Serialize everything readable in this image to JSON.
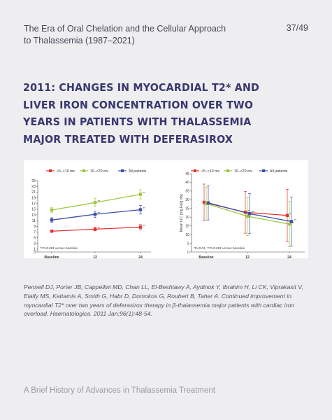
{
  "header": {
    "subtitle": "The Era of Oral Chelation and the Cellular Approach to Thalassemia  (1987–2021)",
    "page_number": "37/49"
  },
  "title": "2011: Changes in Myocardial T2* and Liver Iron Concentration over Two Years in Patients with Thalassemia Major Treated with Deferasirox",
  "citation": "Pennell DJ, Porter JB, Cappellini MD, Chan LL, El-Beshlawy A, Aydinok Y, Ibrahim H, Li CK, Viprakasit V, Elalfy MS, Kattamis A, Smith G, Habr D, Domokos G, Roubert B, Taher A. Continued improvement in myocardial T2* over two years of deferasirox therapy in β-thalassemia major patients with cardiac iron overload. Haematologica. 2011 Jan;96(1):48-54.",
  "footer": "A Brief History of Advances in Thalassemia Treatment",
  "colors": {
    "red": "#e8312f",
    "green": "#9bc93c",
    "blue": "#3b50a8",
    "title": "#38376f"
  },
  "chart_data": [
    {
      "type": "line",
      "categories": [
        "Baseline",
        "12 Months",
        "24 Months"
      ],
      "ylim": [
        0,
        25
      ],
      "yticks": [
        "0",
        "1",
        "3",
        "5",
        "7",
        "9",
        "11",
        "13",
        "15",
        "17",
        "19",
        "21",
        "23",
        "25"
      ],
      "legend": [
        ">5–<10 ms",
        "10–<20 ms",
        "All patients"
      ],
      "series": [
        {
          "name": ">5–<10 ms",
          "color": "#e8312f",
          "values": [
            7.3,
            8.0,
            8.7
          ],
          "err": [
            0.4,
            0.6,
            0.9
          ],
          "sig": [
            "",
            "**",
            "**"
          ]
        },
        {
          "name": "10–<20 ms",
          "color": "#9bc93c",
          "values": [
            14.7,
            17.3,
            20.2
          ],
          "err": [
            0.8,
            1.4,
            1.6
          ],
          "sig": [
            "",
            "**",
            "**"
          ]
        },
        {
          "name": "All patients",
          "color": "#3b50a8",
          "values": [
            11.2,
            13.2,
            14.8
          ],
          "err": [
            0.8,
            1.1,
            1.5
          ],
          "sig": [
            "",
            "**",
            "**"
          ]
        }
      ],
      "note": "**P<0.001 versus baseline"
    },
    {
      "type": "line",
      "categories": [
        "Baseline",
        "12 Months",
        "24 Months"
      ],
      "ylabel": "Mean LIC (mg Fe/g dw)",
      "ylim": [
        0,
        45
      ],
      "yticks": [
        "0",
        "5",
        "10",
        "15",
        "20",
        "25",
        "30",
        "35",
        "40",
        "45"
      ],
      "legend": [
        ">5–<10 ms",
        "10–<20 ms",
        "All patients"
      ],
      "series": [
        {
          "name": ">5–<10 ms",
          "color": "#e8312f",
          "values": [
            28.5,
            22.8,
            21.0
          ],
          "err": [
            10.5,
            12.0,
            15.0
          ],
          "sig": [
            "",
            "**",
            "*"
          ]
        },
        {
          "name": "10–<20 ms",
          "color": "#9bc93c",
          "values": [
            27.8,
            20.5,
            16.0
          ],
          "err": [
            9.5,
            11.0,
            13.0
          ],
          "sig": [
            "",
            "**",
            "**"
          ]
        },
        {
          "name": "All patients",
          "color": "#3b50a8",
          "values": [
            28.2,
            22.0,
            17.5
          ],
          "err": [
            9.8,
            11.5,
            14.0
          ],
          "sig": [
            "",
            "**",
            "**"
          ]
        }
      ],
      "note": "*P<0.01; **P<0.001 versus baseline"
    }
  ]
}
